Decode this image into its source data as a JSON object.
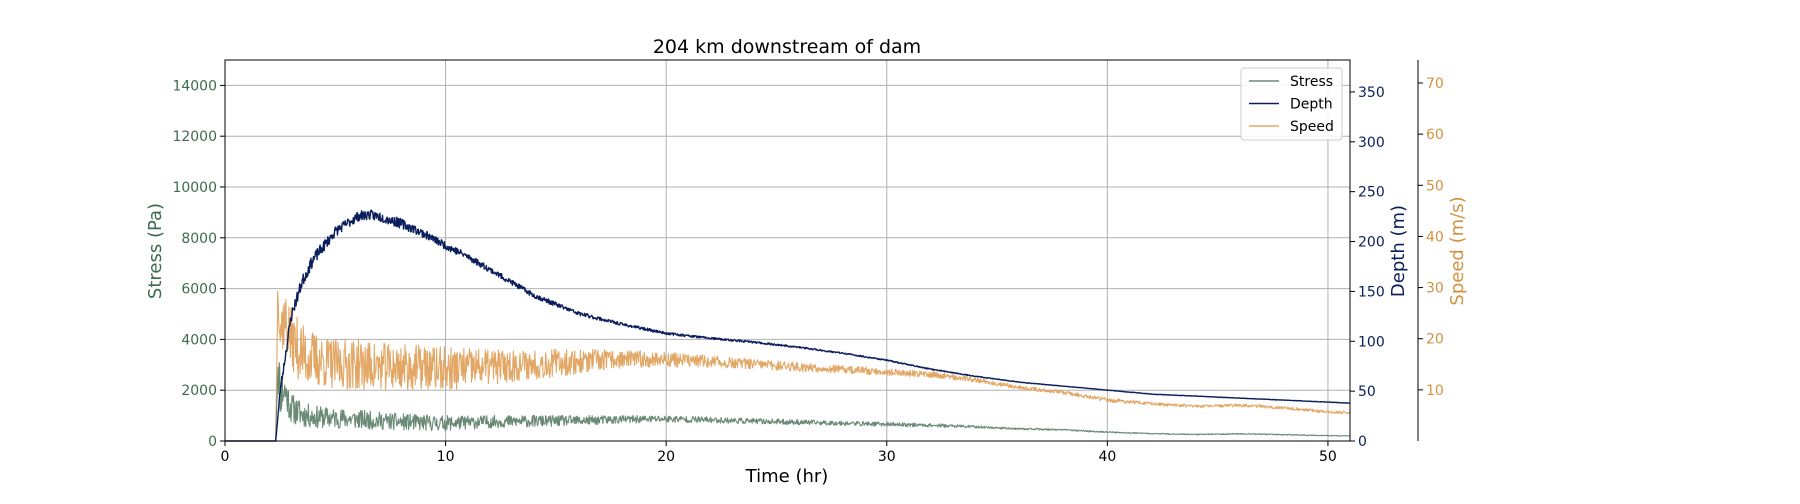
{
  "chart_data": {
    "type": "line",
    "title": "204 km downstream of dam",
    "xlabel": "Time (hr)",
    "xlim": [
      0,
      51
    ],
    "xticks": [
      0,
      10,
      20,
      30,
      40,
      50
    ],
    "grid": true,
    "legend_position": "top-right",
    "axes": {
      "stress": {
        "label": "Stress (Pa)",
        "ylim": [
          0,
          15000
        ],
        "ticks": [
          0,
          2000,
          4000,
          6000,
          8000,
          10000,
          12000,
          14000
        ],
        "color": "#3e6b50",
        "side": "left"
      },
      "depth": {
        "label": "Depth (m)",
        "ylim": [
          0,
          382
        ],
        "ticks": [
          0,
          50,
          100,
          150,
          200,
          250,
          300,
          350
        ],
        "color": "#0b1f5c",
        "side": "right"
      },
      "speed": {
        "label": "Speed (m/s)",
        "ylim": [
          0,
          74.5
        ],
        "ticks": [
          10,
          20,
          30,
          40,
          50,
          60,
          70
        ],
        "color": "#d4913f",
        "side": "right-outer"
      }
    },
    "series": [
      {
        "name": "Stress",
        "axis": "stress",
        "color": "#6a8a76",
        "x": [
          0,
          2.3,
          2.4,
          2.5,
          2.7,
          3,
          3.5,
          4,
          5,
          6,
          7,
          8,
          9,
          10,
          12,
          14,
          16,
          18,
          20,
          22,
          24,
          26,
          28,
          30,
          32,
          34,
          36,
          38,
          40,
          42,
          44,
          46,
          48,
          50,
          51
        ],
        "values": [
          0,
          0,
          3500,
          1900,
          2000,
          1300,
          1050,
          950,
          900,
          850,
          800,
          750,
          720,
          700,
          760,
          780,
          800,
          850,
          870,
          830,
          780,
          740,
          700,
          660,
          620,
          560,
          480,
          440,
          350,
          290,
          260,
          280,
          250,
          210,
          200
        ],
        "noise": [
          0,
          0,
          1500,
          900,
          800,
          600,
          500,
          450,
          400,
          380,
          350,
          330,
          320,
          300,
          250,
          230,
          200,
          160,
          140,
          120,
          110,
          100,
          90,
          80,
          70,
          50,
          35,
          30,
          25,
          20,
          20,
          20,
          20,
          15,
          15
        ]
      },
      {
        "name": "Depth",
        "axis": "depth",
        "color": "#0b1f5c",
        "x": [
          0,
          2.3,
          2.5,
          3,
          3.5,
          4,
          5,
          6,
          6.5,
          7,
          8,
          9,
          10,
          11,
          12,
          14,
          16,
          18,
          20,
          22,
          24,
          26,
          28,
          30,
          32,
          34,
          36,
          38,
          40,
          42,
          44,
          46,
          48,
          50,
          51
        ],
        "values": [
          0,
          0,
          50,
          125,
          160,
          182,
          210,
          225,
          227,
          225,
          218,
          208,
          196,
          185,
          172,
          146,
          128,
          117,
          108,
          103,
          99,
          94,
          88,
          81,
          72,
          65,
          59,
          55,
          51,
          47,
          45,
          43,
          41,
          39,
          38
        ],
        "noise": [
          0,
          0,
          4,
          6,
          6,
          6,
          5,
          5,
          5,
          5,
          5,
          4,
          4,
          3.5,
          3,
          2.5,
          2,
          1.5,
          1.2,
          1,
          1,
          0.8,
          0.8,
          0.6,
          0.5,
          0.4,
          0.3,
          0.2,
          0.2,
          0.2,
          0.2,
          0.2,
          0.2,
          0.2,
          0.2
        ]
      },
      {
        "name": "Speed",
        "axis": "speed",
        "color": "#e2a765",
        "x": [
          0,
          2.3,
          2.4,
          2.5,
          2.7,
          3,
          3.5,
          4,
          5,
          6,
          7,
          8,
          9,
          10,
          12,
          14,
          16,
          18,
          20,
          22,
          24,
          26,
          28,
          30,
          32,
          34,
          36,
          38,
          40,
          42,
          44,
          46,
          48,
          50,
          51
        ],
        "values": [
          0,
          0,
          32,
          22,
          24,
          20,
          17,
          16,
          15,
          15,
          14.5,
          14.5,
          14.3,
          14,
          14.5,
          15,
          15.5,
          16,
          16,
          15.5,
          15,
          14.5,
          14,
          13.5,
          13,
          12,
          10.5,
          9.5,
          8,
          7.3,
          6.8,
          7,
          6.5,
          5.7,
          5.5
        ],
        "noise": [
          0,
          0,
          5,
          6,
          6,
          6,
          6,
          5.5,
          5,
          5,
          4.8,
          4.6,
          4.5,
          4.5,
          3.5,
          3,
          2.5,
          1.8,
          1.5,
          1.2,
          1,
          0.9,
          0.8,
          0.7,
          0.6,
          0.5,
          0.4,
          0.4,
          0.4,
          0.3,
          0.3,
          0.3,
          0.3,
          0.3,
          0.3
        ]
      }
    ]
  }
}
